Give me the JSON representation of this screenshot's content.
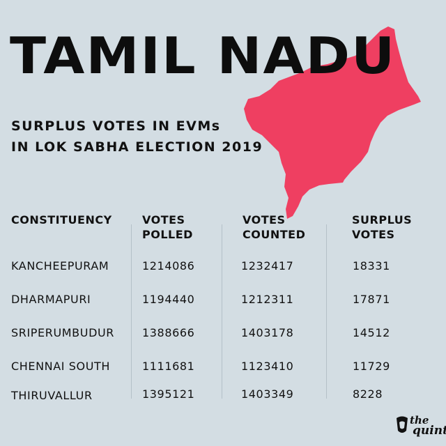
{
  "title": "TAMIL NADU",
  "subtitle_line1": "SURPLUS VOTES IN EVMs",
  "subtitle_line2": "IN LOK SABHA ELECTION 2019",
  "colors": {
    "background": "#d3dde3",
    "map": "#ef3f61",
    "text": "#111111"
  },
  "table": {
    "headers": {
      "constituency": "CONSTITUENCY",
      "polled_1": "VOTES",
      "polled_2": "POLLED",
      "counted_1": "VOTES",
      "counted_2": "COUNTED",
      "surplus_1": "SURPLUS",
      "surplus_2": "VOTES"
    },
    "rows": [
      {
        "constituency": "KANCHEEPURAM",
        "polled": "1214086",
        "counted": "1232417",
        "surplus": "18331"
      },
      {
        "constituency": "DHARMAPURI",
        "polled": "1194440",
        "counted": "1212311",
        "surplus": "17871"
      },
      {
        "constituency": "SRIPERUMBUDUR",
        "polled": "1388666",
        "counted": "1403178",
        "surplus": "14512"
      },
      {
        "constituency": "CHENNAI SOUTH",
        "polled": "1111681",
        "counted": "1123410",
        "surplus": "11729"
      },
      {
        "constituency": "THIRUVALLUR",
        "polled": "1395121",
        "counted": "1403349",
        "surplus": "8228"
      }
    ]
  },
  "logo": {
    "line1": "the",
    "line2": "quint",
    "icon": "quint-logo-icon"
  }
}
